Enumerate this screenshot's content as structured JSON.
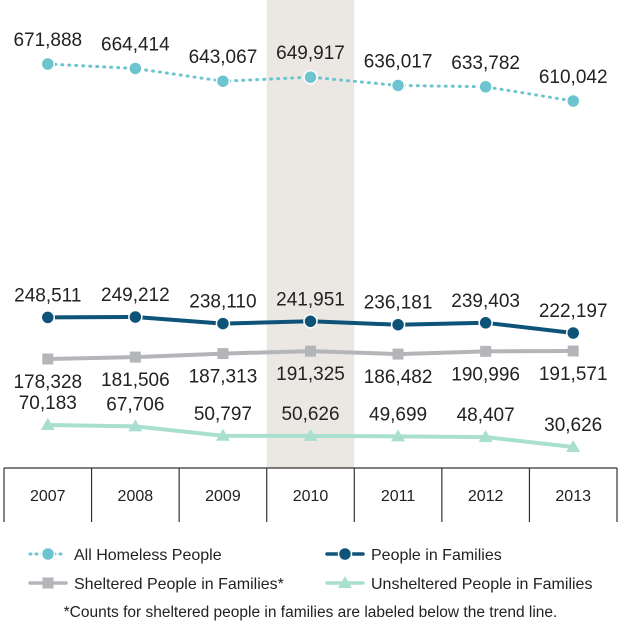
{
  "chart_data": {
    "type": "line",
    "categories": [
      "2007",
      "2008",
      "2009",
      "2010",
      "2011",
      "2012",
      "2013"
    ],
    "highlight_category": "2010",
    "series": [
      {
        "name": "All Homeless People",
        "values": [
          671888,
          664414,
          643067,
          649917,
          636017,
          633782,
          610042
        ],
        "labels": [
          "671,888",
          "664,414",
          "643,067",
          "649,917",
          "636,017",
          "633,782",
          "610,042"
        ],
        "color": "#6cc4cf",
        "style": "dotted",
        "marker": "circle"
      },
      {
        "name": "People in Families",
        "values": [
          248511,
          249212,
          238110,
          241951,
          236181,
          239403,
          222197
        ],
        "labels": [
          "248,511",
          "249,212",
          "238,110",
          "241,951",
          "236,181",
          "239,403",
          "222,197"
        ],
        "color": "#0f5478",
        "style": "solid",
        "marker": "circle"
      },
      {
        "name": "Sheltered People in Families*",
        "values": [
          178328,
          181506,
          187313,
          191325,
          186482,
          190996,
          191571
        ],
        "labels": [
          "178,328",
          "181,506",
          "187,313",
          "191,325",
          "186,482",
          "190,996",
          "191,571"
        ],
        "color": "#b3b5b8",
        "style": "solid",
        "marker": "square"
      },
      {
        "name": "Unsheltered People in Families",
        "values": [
          70183,
          67706,
          50797,
          50626,
          49699,
          48407,
          30626
        ],
        "labels": [
          "70,183",
          "67,706",
          "50,797",
          "50,626",
          "49,699",
          "48,407",
          "30,626"
        ],
        "color": "#a8dfcf",
        "style": "solid",
        "marker": "triangle"
      }
    ],
    "legend_position": "bottom",
    "footnote": "*Counts for sheltered people in families are labeled below the trend line."
  }
}
